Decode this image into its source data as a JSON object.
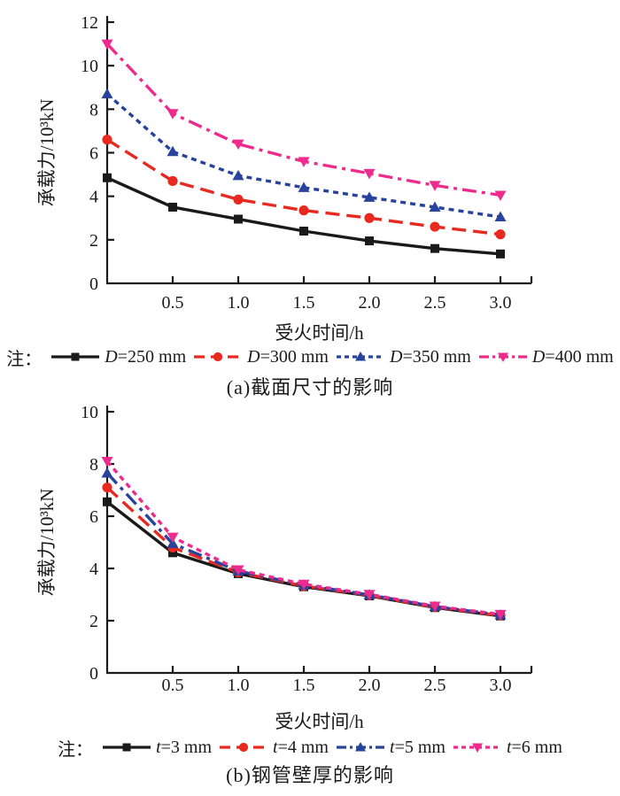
{
  "page": {
    "background": "#ffffff",
    "ink_color": "#1a1a1a"
  },
  "chart_data": [
    {
      "id": "a",
      "type": "line",
      "title": "(a)截面尺寸的影响",
      "xlabel": "受火时间/h",
      "ylabel": "承载力/10³kN",
      "legend_prefix": "注：",
      "legend_position": "below",
      "grid": false,
      "x": [
        0,
        0.5,
        1.0,
        1.5,
        2.0,
        2.5,
        3.0
      ],
      "xlim": [
        0,
        3.2
      ],
      "ylim": [
        0,
        12
      ],
      "xtick_labels": [
        "0.5",
        "1.0",
        "1.5",
        "2.0",
        "2.5",
        "3.0"
      ],
      "ytick_labels": [
        "0",
        "2",
        "4",
        "6",
        "8",
        "10",
        "12"
      ],
      "series": [
        {
          "name": "D=250 mm",
          "color": "#1a1a1a",
          "marker": "square",
          "dash": "solid",
          "values": [
            4.85,
            3.5,
            2.95,
            2.4,
            1.95,
            1.6,
            1.35
          ]
        },
        {
          "name": "D=300 mm",
          "color": "#e8291f",
          "marker": "circle",
          "dash": "long-dash",
          "values": [
            6.6,
            4.7,
            3.85,
            3.35,
            3.0,
            2.6,
            2.25
          ]
        },
        {
          "name": "D=350 mm",
          "color": "#27439b",
          "marker": "triangle-up",
          "dash": "short-dash",
          "values": [
            8.7,
            6.05,
            4.95,
            4.4,
            3.95,
            3.5,
            3.05
          ]
        },
        {
          "name": "D=400 mm",
          "color": "#ee2b8d",
          "marker": "triangle-down",
          "dash": "dash-dot",
          "values": [
            11.0,
            7.8,
            6.4,
            5.6,
            5.05,
            4.5,
            4.05
          ]
        }
      ]
    },
    {
      "id": "b",
      "type": "line",
      "title": "(b)钢管壁厚的影响",
      "xlabel": "受火时间/h",
      "ylabel": "承载力/10³kN",
      "legend_prefix": "注：",
      "legend_position": "below",
      "grid": false,
      "x": [
        0,
        0.5,
        1.0,
        1.5,
        2.0,
        2.5,
        3.0
      ],
      "xlim": [
        0,
        3.2
      ],
      "ylim": [
        0,
        10
      ],
      "xtick_labels": [
        "0.5",
        "1.0",
        "1.5",
        "2.0",
        "2.5",
        "3.0"
      ],
      "ytick_labels": [
        "0",
        "2",
        "4",
        "6",
        "8",
        "10"
      ],
      "series": [
        {
          "name": "t=3 mm",
          "color": "#1a1a1a",
          "marker": "square",
          "dash": "solid",
          "values": [
            6.55,
            4.6,
            3.8,
            3.3,
            2.95,
            2.5,
            2.18
          ]
        },
        {
          "name": "t=4 mm",
          "color": "#e8291f",
          "marker": "circle",
          "dash": "long-dash",
          "values": [
            7.1,
            4.8,
            3.85,
            3.33,
            2.97,
            2.52,
            2.2
          ]
        },
        {
          "name": "t=5 mm",
          "color": "#27439b",
          "marker": "triangle-up",
          "dash": "dash-dot",
          "values": [
            7.65,
            4.95,
            3.9,
            3.36,
            2.99,
            2.54,
            2.22
          ]
        },
        {
          "name": "t=6 mm",
          "color": "#ee2b8d",
          "marker": "triangle-down",
          "dash": "short-dash",
          "values": [
            8.1,
            5.2,
            3.95,
            3.4,
            3.01,
            2.56,
            2.24
          ]
        }
      ]
    }
  ]
}
